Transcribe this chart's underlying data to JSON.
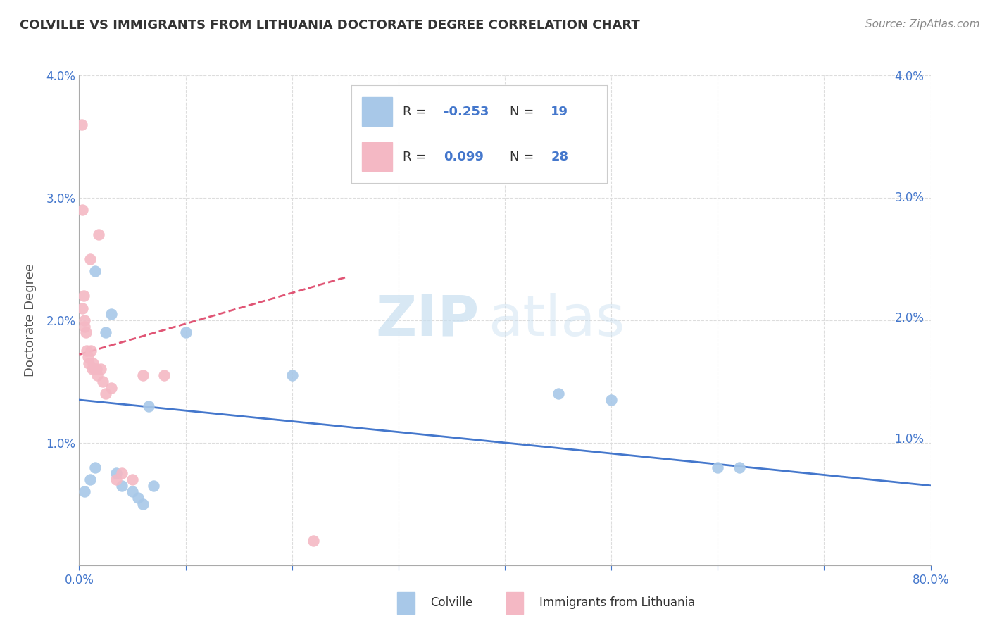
{
  "title": "COLVILLE VS IMMIGRANTS FROM LITHUANIA DOCTORATE DEGREE CORRELATION CHART",
  "source": "Source: ZipAtlas.com",
  "ylabel": "Doctorate Degree",
  "xmin": 0.0,
  "xmax": 80.0,
  "ymin": 0.0,
  "ymax": 4.0,
  "yticks": [
    0.0,
    1.0,
    2.0,
    3.0,
    4.0
  ],
  "colville_color": "#a8c8e8",
  "lithuania_color": "#f4b8c4",
  "blue_line_color": "#4477cc",
  "pink_line_color": "#e05575",
  "watermark_zip": "ZIP",
  "watermark_atlas": "atlas",
  "colville_x": [
    0.5,
    1.0,
    1.5,
    1.5,
    2.5,
    3.0,
    3.5,
    4.0,
    5.0,
    5.5,
    6.0,
    6.5,
    7.0,
    10.0,
    20.0,
    45.0,
    50.0,
    60.0,
    62.0
  ],
  "colville_y": [
    0.6,
    0.7,
    0.8,
    2.4,
    1.9,
    2.05,
    0.75,
    0.65,
    0.6,
    0.55,
    0.5,
    1.3,
    0.65,
    1.9,
    1.55,
    1.4,
    1.35,
    0.8,
    0.8
  ],
  "lithuania_x": [
    0.2,
    0.3,
    0.3,
    0.4,
    0.5,
    0.5,
    0.6,
    0.7,
    0.8,
    0.9,
    1.0,
    1.1,
    1.2,
    1.3,
    1.4,
    1.6,
    1.7,
    1.8,
    2.0,
    2.2,
    2.5,
    3.0,
    3.5,
    4.0,
    5.0,
    6.0,
    8.0,
    22.0
  ],
  "lithuania_y": [
    3.6,
    2.9,
    2.1,
    2.2,
    2.0,
    1.95,
    1.9,
    1.75,
    1.7,
    1.65,
    2.5,
    1.75,
    1.6,
    1.65,
    1.6,
    1.6,
    1.55,
    2.7,
    1.6,
    1.5,
    1.4,
    1.45,
    0.7,
    0.75,
    0.7,
    1.55,
    1.55,
    0.2
  ],
  "blue_line_x": [
    0.0,
    80.0
  ],
  "blue_line_y": [
    1.35,
    0.65
  ],
  "pink_line_x": [
    0.0,
    25.0
  ],
  "pink_line_y": [
    1.72,
    2.35
  ],
  "background_color": "#ffffff",
  "grid_color": "#dddddd",
  "title_color": "#333333",
  "axis_color": "#4477cc",
  "legend_blue_r": "R = ",
  "legend_blue_r_val": "-0.253",
  "legend_blue_n": "  N = ",
  "legend_blue_n_val": "19",
  "legend_pink_r": "R =  ",
  "legend_pink_r_val": "0.099",
  "legend_pink_n": "  N = ",
  "legend_pink_n_val": "28",
  "bottom_legend_blue": "Colville",
  "bottom_legend_pink": "Immigrants from Lithuania"
}
